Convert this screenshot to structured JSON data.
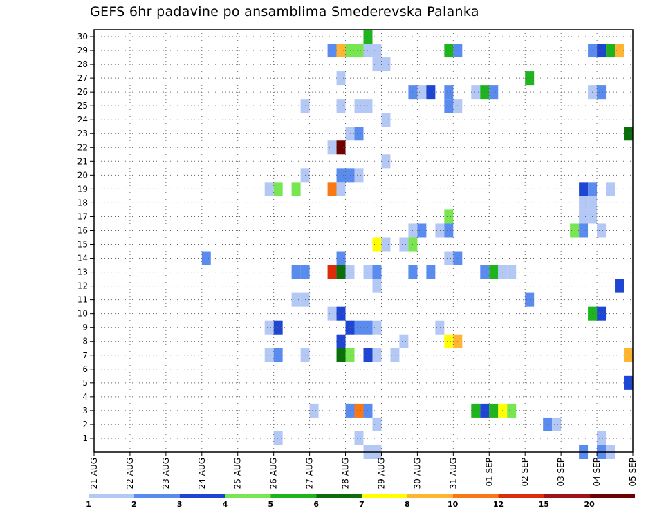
{
  "title": "GEFS 6hr padavine po ansamblima Smederevska Palanka",
  "chart_data": {
    "type": "heatmap",
    "title": "GEFS 6hr padavine po ansamblima Smederevska Palanka",
    "xlabel": "",
    "ylabel": "",
    "x_tick_labels": [
      "21 AUG",
      "22 AUG",
      "23 AUG",
      "24 AUG",
      "25 AUG",
      "26 AUG",
      "27 AUG",
      "28 AUG",
      "29 AUG",
      "30 AUG",
      "31 AUG",
      "01 SEP",
      "02 SEP",
      "03 SEP",
      "04 SEP",
      "05 SEP"
    ],
    "xlim_days": [
      0,
      15
    ],
    "y_tick_labels": [
      "1",
      "2",
      "3",
      "4",
      "5",
      "6",
      "7",
      "8",
      "9",
      "10",
      "11",
      "12",
      "13",
      "14",
      "15",
      "16",
      "17",
      "18",
      "19",
      "20",
      "21",
      "22",
      "23",
      "24",
      "25",
      "26",
      "27",
      "28",
      "29",
      "30"
    ],
    "ylim": [
      0,
      30
    ],
    "step_hours": 6,
    "grid": true,
    "colorbar": {
      "thresholds": [
        1,
        2,
        3,
        4,
        5,
        6,
        7,
        8,
        10,
        12,
        15,
        20
      ],
      "labels": [
        "1",
        "2",
        "3",
        "4",
        "5",
        "6",
        "7",
        "8",
        "10",
        "12",
        "15",
        "20"
      ],
      "colors": [
        "#b4c8f5",
        "#5a8cf0",
        "#1e46d2",
        "#78e650",
        "#1eb41e",
        "#0a6e0a",
        "#ffff00",
        "#ffb432",
        "#fa7814",
        "#dc2d0a",
        "#a01414",
        "#6e0000"
      ]
    },
    "cells": [
      [
        7.5,
        30,
        "#1eb41e"
      ],
      [
        6.5,
        29,
        "#5a8cf0"
      ],
      [
        6.75,
        29,
        "#ffb432"
      ],
      [
        7.0,
        29,
        "#78e650"
      ],
      [
        7.25,
        29,
        "#78e650"
      ],
      [
        7.5,
        29,
        "#b4c8f5"
      ],
      [
        7.75,
        29,
        "#b4c8f5"
      ],
      [
        9.75,
        29,
        "#1eb41e"
      ],
      [
        10.0,
        29,
        "#5a8cf0"
      ],
      [
        13.75,
        29,
        "#5a8cf0"
      ],
      [
        14.0,
        29,
        "#1e46d2"
      ],
      [
        14.25,
        29,
        "#1eb41e"
      ],
      [
        14.5,
        29,
        "#ffb432"
      ],
      [
        7.75,
        28,
        "#b4c8f5"
      ],
      [
        8.0,
        28,
        "#b4c8f5"
      ],
      [
        6.75,
        27,
        "#b4c8f5"
      ],
      [
        12.0,
        27,
        "#1eb41e"
      ],
      [
        8.75,
        26,
        "#5a8cf0"
      ],
      [
        9.0,
        26,
        "#b4c8f5"
      ],
      [
        9.25,
        26,
        "#1e46d2"
      ],
      [
        9.75,
        26,
        "#5a8cf0"
      ],
      [
        10.5,
        26,
        "#b4c8f5"
      ],
      [
        10.75,
        26,
        "#1eb41e"
      ],
      [
        11.0,
        26,
        "#5a8cf0"
      ],
      [
        13.75,
        26,
        "#b4c8f5"
      ],
      [
        14.0,
        26,
        "#5a8cf0"
      ],
      [
        5.75,
        25,
        "#b4c8f5"
      ],
      [
        6.75,
        25,
        "#b4c8f5"
      ],
      [
        7.25,
        25,
        "#b4c8f5"
      ],
      [
        7.5,
        25,
        "#b4c8f5"
      ],
      [
        9.75,
        25,
        "#5a8cf0"
      ],
      [
        10.0,
        25,
        "#b4c8f5"
      ],
      [
        8.0,
        24,
        "#b4c8f5"
      ],
      [
        7.0,
        23,
        "#b4c8f5"
      ],
      [
        7.25,
        23,
        "#5a8cf0"
      ],
      [
        14.75,
        23,
        "#0a6e0a"
      ],
      [
        6.5,
        22,
        "#b4c8f5"
      ],
      [
        6.75,
        22,
        "#6e0000"
      ],
      [
        8.0,
        21,
        "#b4c8f5"
      ],
      [
        5.75,
        20,
        "#b4c8f5"
      ],
      [
        6.75,
        20,
        "#5a8cf0"
      ],
      [
        7.0,
        20,
        "#5a8cf0"
      ],
      [
        7.25,
        20,
        "#b4c8f5"
      ],
      [
        4.75,
        19,
        "#b4c8f5"
      ],
      [
        5.0,
        19,
        "#78e650"
      ],
      [
        5.5,
        19,
        "#78e650"
      ],
      [
        6.5,
        19,
        "#fa7814"
      ],
      [
        6.75,
        19,
        "#b4c8f5"
      ],
      [
        13.5,
        19,
        "#1e46d2"
      ],
      [
        13.75,
        19,
        "#5a8cf0"
      ],
      [
        14.25,
        19,
        "#b4c8f5"
      ],
      [
        13.5,
        18,
        "#b4c8f5"
      ],
      [
        13.75,
        18,
        "#b4c8f5"
      ],
      [
        9.75,
        17,
        "#78e650"
      ],
      [
        13.5,
        17,
        "#b4c8f5"
      ],
      [
        13.75,
        17,
        "#b4c8f5"
      ],
      [
        8.75,
        16,
        "#b4c8f5"
      ],
      [
        9.0,
        16,
        "#5a8cf0"
      ],
      [
        9.5,
        16,
        "#b4c8f5"
      ],
      [
        9.75,
        16,
        "#5a8cf0"
      ],
      [
        13.25,
        16,
        "#78e650"
      ],
      [
        13.5,
        16,
        "#5a8cf0"
      ],
      [
        14.0,
        16,
        "#b4c8f5"
      ],
      [
        7.75,
        15,
        "#ffff00"
      ],
      [
        8.0,
        15,
        "#b4c8f5"
      ],
      [
        8.5,
        15,
        "#b4c8f5"
      ],
      [
        8.75,
        15,
        "#78e650"
      ],
      [
        3.0,
        14,
        "#5a8cf0"
      ],
      [
        6.75,
        14,
        "#5a8cf0"
      ],
      [
        9.75,
        14,
        "#b4c8f5"
      ],
      [
        10.0,
        14,
        "#5a8cf0"
      ],
      [
        5.5,
        13,
        "#5a8cf0"
      ],
      [
        5.75,
        13,
        "#5a8cf0"
      ],
      [
        6.5,
        13,
        "#dc2d0a"
      ],
      [
        6.75,
        13,
        "#0a6e0a"
      ],
      [
        7.0,
        13,
        "#b4c8f5"
      ],
      [
        7.5,
        13,
        "#b4c8f5"
      ],
      [
        7.75,
        13,
        "#5a8cf0"
      ],
      [
        8.75,
        13,
        "#5a8cf0"
      ],
      [
        9.25,
        13,
        "#5a8cf0"
      ],
      [
        10.75,
        13,
        "#5a8cf0"
      ],
      [
        11.0,
        13,
        "#1eb41e"
      ],
      [
        11.25,
        13,
        "#b4c8f5"
      ],
      [
        11.5,
        13,
        "#b4c8f5"
      ],
      [
        7.75,
        12,
        "#b4c8f5"
      ],
      [
        14.5,
        12,
        "#1e46d2"
      ],
      [
        5.5,
        11,
        "#b4c8f5"
      ],
      [
        5.75,
        11,
        "#b4c8f5"
      ],
      [
        12.0,
        11,
        "#5a8cf0"
      ],
      [
        6.5,
        10,
        "#b4c8f5"
      ],
      [
        6.75,
        10,
        "#1e46d2"
      ],
      [
        13.75,
        10,
        "#1eb41e"
      ],
      [
        14.0,
        10,
        "#1e46d2"
      ],
      [
        4.75,
        9,
        "#b4c8f5"
      ],
      [
        5.0,
        9,
        "#1e46d2"
      ],
      [
        7.0,
        9,
        "#1e46d2"
      ],
      [
        7.25,
        9,
        "#5a8cf0"
      ],
      [
        7.5,
        9,
        "#5a8cf0"
      ],
      [
        7.75,
        9,
        "#b4c8f5"
      ],
      [
        9.5,
        9,
        "#b4c8f5"
      ],
      [
        6.75,
        8,
        "#1e46d2"
      ],
      [
        8.5,
        8,
        "#b4c8f5"
      ],
      [
        9.75,
        8,
        "#ffff00"
      ],
      [
        10.0,
        8,
        "#ffb432"
      ],
      [
        4.75,
        7,
        "#b4c8f5"
      ],
      [
        5.0,
        7,
        "#5a8cf0"
      ],
      [
        5.75,
        7,
        "#b4c8f5"
      ],
      [
        6.75,
        7,
        "#0a6e0a"
      ],
      [
        7.0,
        7,
        "#78e650"
      ],
      [
        7.5,
        7,
        "#1e46d2"
      ],
      [
        7.75,
        7,
        "#b4c8f5"
      ],
      [
        8.25,
        7,
        "#b4c8f5"
      ],
      [
        14.75,
        7,
        "#ffb432"
      ],
      [
        14.75,
        5,
        "#1e46d2"
      ],
      [
        6.0,
        3,
        "#b4c8f5"
      ],
      [
        7.0,
        3,
        "#5a8cf0"
      ],
      [
        7.25,
        3,
        "#fa7814"
      ],
      [
        7.5,
        3,
        "#5a8cf0"
      ],
      [
        10.5,
        3,
        "#1eb41e"
      ],
      [
        10.75,
        3,
        "#1e46d2"
      ],
      [
        11.0,
        3,
        "#1eb41e"
      ],
      [
        11.25,
        3,
        "#ffff00"
      ],
      [
        11.5,
        3,
        "#78e650"
      ],
      [
        7.75,
        2,
        "#b4c8f5"
      ],
      [
        12.5,
        2,
        "#5a8cf0"
      ],
      [
        12.75,
        2,
        "#b4c8f5"
      ],
      [
        5.0,
        1,
        "#b4c8f5"
      ],
      [
        7.25,
        1,
        "#b4c8f5"
      ],
      [
        14.0,
        1,
        "#b4c8f5"
      ],
      [
        7.5,
        0,
        "#b4c8f5"
      ],
      [
        7.75,
        0,
        "#b4c8f5"
      ],
      [
        13.5,
        0,
        "#5a8cf0"
      ],
      [
        14.0,
        0,
        "#5a8cf0"
      ],
      [
        14.25,
        0,
        "#b4c8f5"
      ]
    ]
  }
}
